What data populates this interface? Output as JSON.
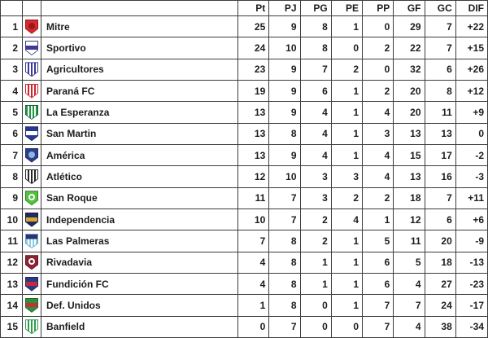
{
  "table": {
    "columns": [
      "Pt",
      "PJ",
      "PG",
      "PE",
      "PP",
      "GF",
      "GC",
      "DIF"
    ],
    "border_color": "#3d3d3d",
    "rows": [
      {
        "pos": "1",
        "name": "Mitre",
        "crest": {
          "style": "emblem",
          "c1": "#d42b30",
          "c2": "#9e151d",
          "border": "#a31016"
        },
        "values": [
          "25",
          "9",
          "8",
          "1",
          "0",
          "29",
          "7",
          "+22"
        ]
      },
      {
        "pos": "2",
        "name": "Sportivo",
        "crest": {
          "style": "hband",
          "c1": "#ffffff",
          "c2": "#3f3a96",
          "border": "#3f3a96"
        },
        "values": [
          "24",
          "10",
          "8",
          "0",
          "2",
          "22",
          "7",
          "+15"
        ]
      },
      {
        "pos": "3",
        "name": "Agricultores",
        "crest": {
          "style": "vstripes",
          "c1": "#ffffff",
          "c2": "#3a3a99",
          "border": "#3a3a99"
        },
        "values": [
          "23",
          "9",
          "7",
          "2",
          "0",
          "32",
          "6",
          "+26"
        ]
      },
      {
        "pos": "4",
        "name": "Paraná FC",
        "crest": {
          "style": "vstripes",
          "c1": "#ffffff",
          "c2": "#d2252b",
          "border": "#d2252b"
        },
        "values": [
          "19",
          "9",
          "6",
          "1",
          "2",
          "20",
          "8",
          "+12"
        ]
      },
      {
        "pos": "5",
        "name": "La Esperanza",
        "crest": {
          "style": "vstripes",
          "c1": "#1f9445",
          "c2": "#ffffff",
          "border": "#156a30"
        },
        "values": [
          "13",
          "9",
          "4",
          "1",
          "4",
          "20",
          "11",
          "+9"
        ]
      },
      {
        "pos": "6",
        "name": "San Martin",
        "crest": {
          "style": "hband",
          "c1": "#2a3990",
          "c2": "#ffffff",
          "border": "#1d2a6e"
        },
        "values": [
          "13",
          "8",
          "4",
          "1",
          "3",
          "13",
          "13",
          "0"
        ]
      },
      {
        "pos": "7",
        "name": "América",
        "crest": {
          "style": "emblem",
          "c1": "#2e3d85",
          "c2": "#86b7dc",
          "border": "#202c63"
        },
        "values": [
          "13",
          "9",
          "4",
          "1",
          "4",
          "15",
          "17",
          "-2"
        ]
      },
      {
        "pos": "8",
        "name": "Atlético",
        "crest": {
          "style": "vstripes",
          "c1": "#ffffff",
          "c2": "#262626",
          "border": "#262626"
        },
        "values": [
          "12",
          "10",
          "3",
          "3",
          "4",
          "13",
          "16",
          "-3"
        ]
      },
      {
        "pos": "9",
        "name": "San Roque",
        "crest": {
          "style": "ring",
          "c1": "#54c23c",
          "c2": "#ffffff",
          "border": "#2f7d27"
        },
        "values": [
          "11",
          "7",
          "3",
          "2",
          "2",
          "18",
          "7",
          "+11"
        ]
      },
      {
        "pos": "10",
        "name": "Independencia",
        "crest": {
          "style": "hband",
          "c1": "#232a63",
          "c2": "#d9a62e",
          "border": "#15193f"
        },
        "values": [
          "10",
          "7",
          "2",
          "4",
          "1",
          "12",
          "6",
          "+6"
        ]
      },
      {
        "pos": "11",
        "name": "Las Palmeras",
        "crest": {
          "style": "chief",
          "c1": "#8ed1ea",
          "c2": "#ffffff",
          "c3": "#2c3270",
          "border": "#5da6c4"
        },
        "values": [
          "7",
          "8",
          "2",
          "1",
          "5",
          "11",
          "20",
          "-9"
        ]
      },
      {
        "pos": "12",
        "name": "Rivadavia",
        "crest": {
          "style": "ring",
          "c1": "#8c2433",
          "c2": "#ffffff",
          "border": "#5e1522"
        },
        "values": [
          "4",
          "8",
          "1",
          "1",
          "6",
          "5",
          "18",
          "-13"
        ]
      },
      {
        "pos": "13",
        "name": "Fundición FC",
        "crest": {
          "style": "hband",
          "c1": "#2c3a85",
          "c2": "#c32a3c",
          "border": "#1d2a63"
        },
        "values": [
          "4",
          "8",
          "1",
          "1",
          "6",
          "4",
          "27",
          "-23"
        ]
      },
      {
        "pos": "14",
        "name": "Def. Unidos",
        "crest": {
          "style": "hband",
          "c1": "#2e8f3c",
          "c2": "#c62f35",
          "border": "#1f6b2a"
        },
        "values": [
          "1",
          "8",
          "0",
          "1",
          "7",
          "7",
          "24",
          "-17"
        ]
      },
      {
        "pos": "15",
        "name": "Banfield",
        "crest": {
          "style": "vstripes",
          "c1": "#ffffff",
          "c2": "#2f9e4d",
          "border": "#2f9e4d"
        },
        "values": [
          "0",
          "7",
          "0",
          "0",
          "7",
          "4",
          "38",
          "-34"
        ]
      }
    ]
  }
}
